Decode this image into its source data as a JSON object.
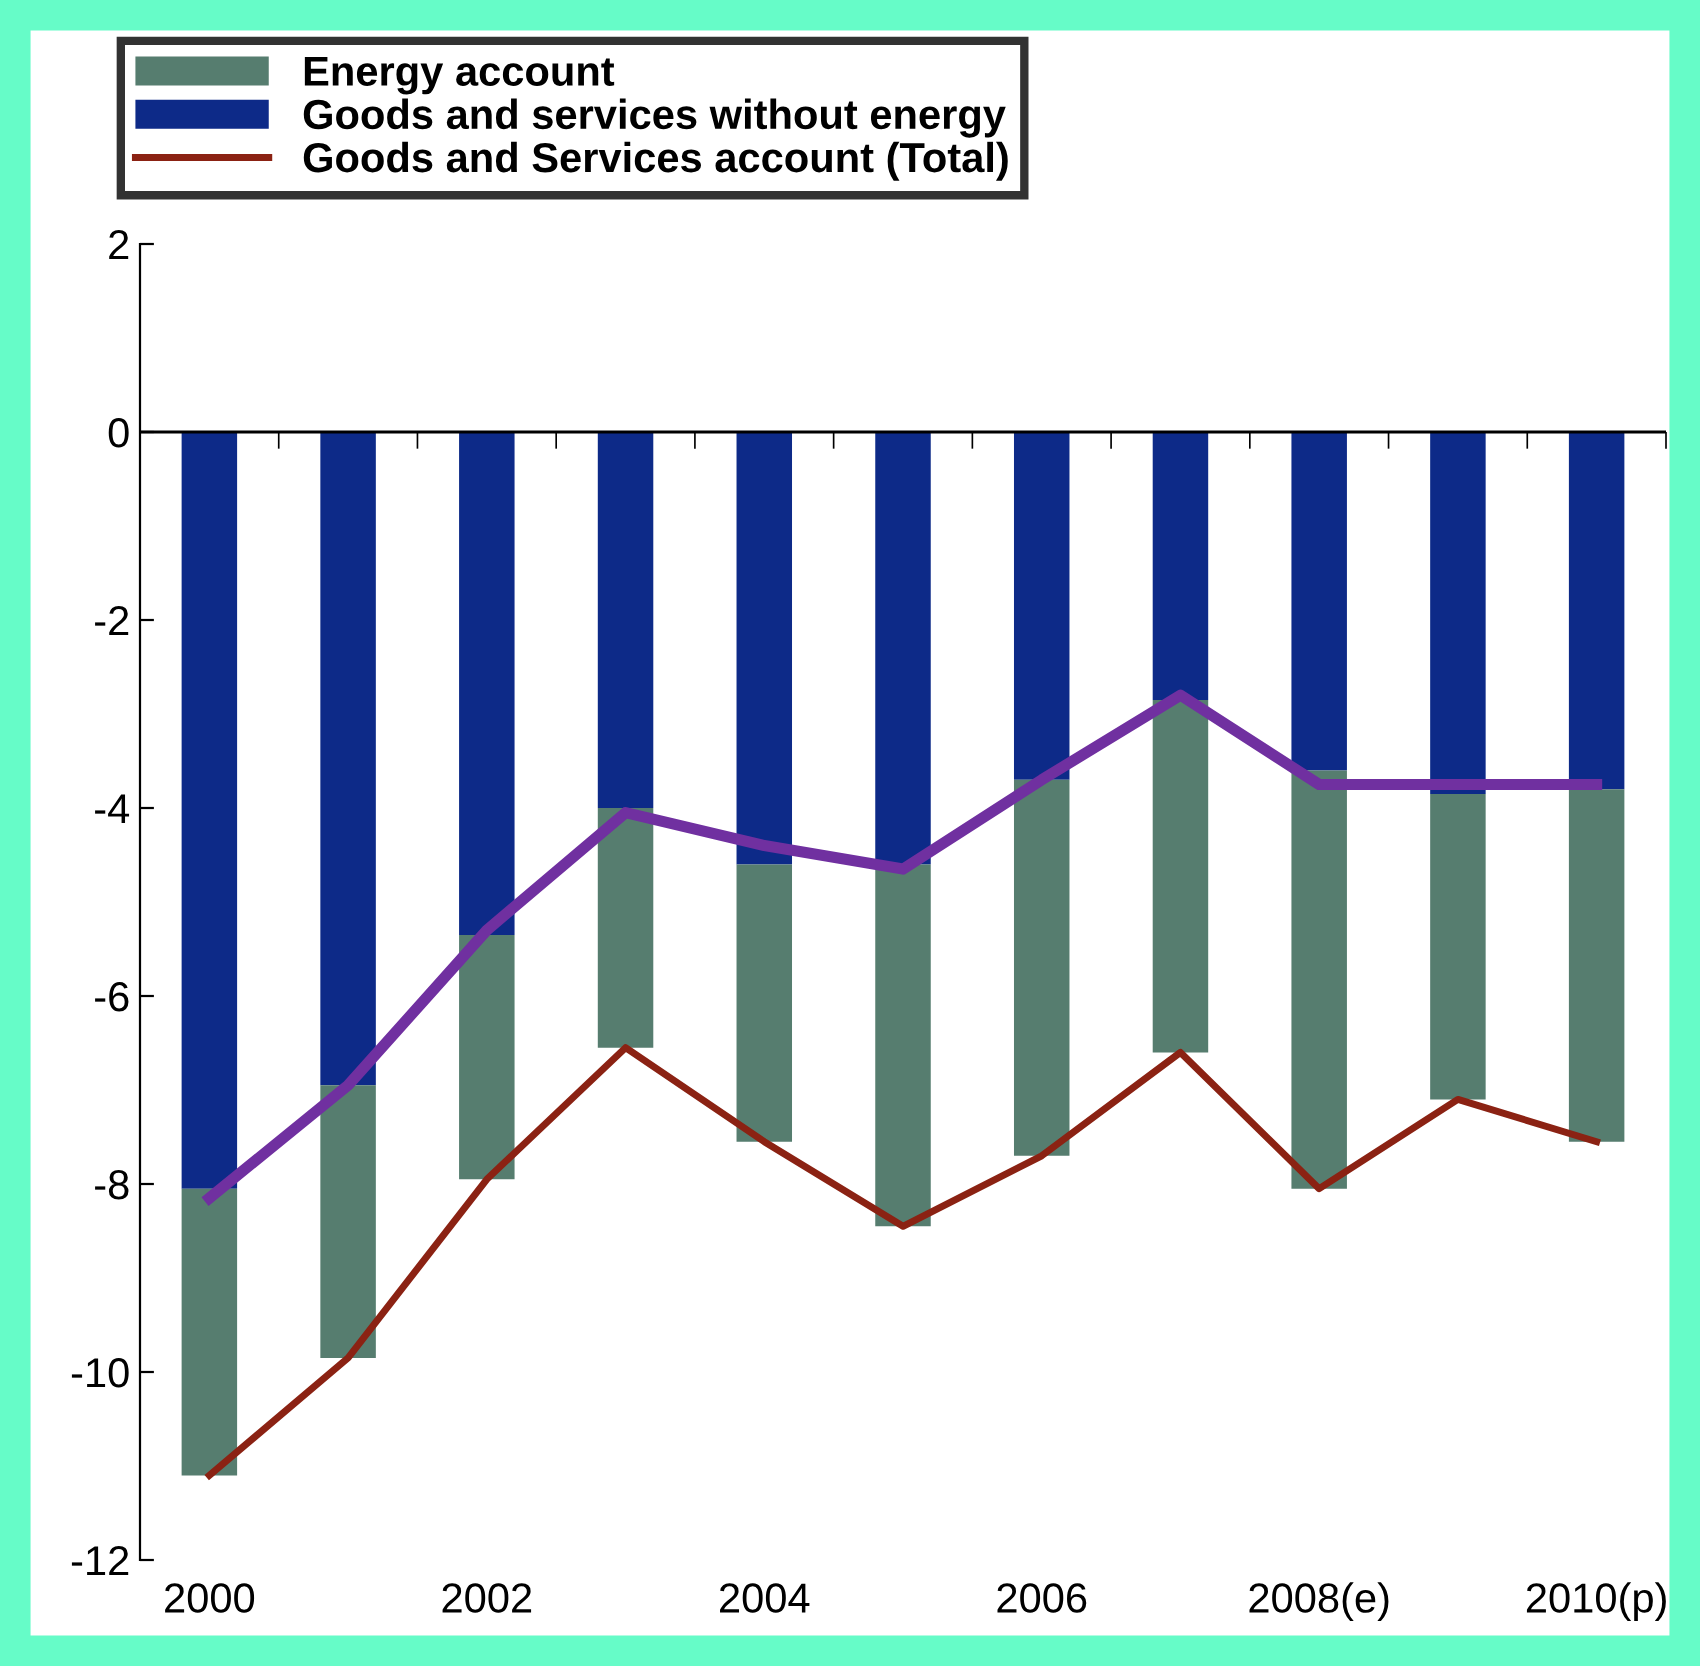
{
  "chart_data": {
    "type": "bar",
    "stacked": true,
    "categories": [
      "2000",
      null,
      "2002",
      null,
      "2004",
      null,
      "2006",
      null,
      "2008(e)",
      null,
      "2010(p)"
    ],
    "series": [
      {
        "name": "Goods and services without energy",
        "color": "#0d2a88",
        "values": [
          -8.05,
          -6.95,
          -5.35,
          -4.0,
          -4.6,
          -4.6,
          -3.7,
          -2.85,
          -3.6,
          -3.85,
          -3.8
        ]
      },
      {
        "name": "Energy account",
        "color": "#567d6f",
        "values": [
          -3.05,
          -2.9,
          -2.6,
          -2.55,
          -2.95,
          -3.85,
          -4.0,
          -3.75,
          -4.45,
          -3.25,
          -3.75
        ]
      },
      {
        "name": "Goods and Services account (Total)",
        "type": "line",
        "color": "#8b2213",
        "values": [
          -11.1,
          -9.85,
          -7.95,
          -6.55,
          -7.55,
          -8.45,
          -7.7,
          -6.6,
          -8.05,
          -7.1,
          -7.55
        ]
      },
      {
        "type": "line",
        "color": "#7030a0",
        "values": [
          -8.15,
          -6.95,
          -5.3,
          -4.05,
          -4.4,
          -4.65,
          -3.7,
          -2.8,
          -3.75,
          -3.75,
          -3.75
        ]
      }
    ],
    "ylim": [
      -12,
      2
    ],
    "yticks": [
      -12,
      -10,
      -8,
      -6,
      -4,
      -2,
      0,
      2
    ],
    "ref_lines": [
      {
        "axis": "y",
        "value": 0,
        "color": "#000000"
      }
    ],
    "grid": false,
    "legend": "top",
    "marker": "none",
    "line_style": "solid"
  }
}
